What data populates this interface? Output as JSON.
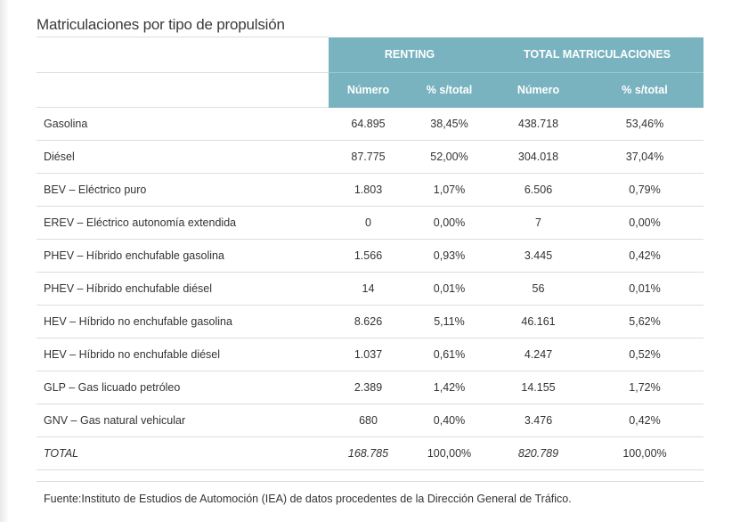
{
  "title": "Matriculaciones por tipo de propulsión",
  "header": {
    "group_renting": "RENTING",
    "group_total": "TOTAL MATRICULACIONES",
    "col_numero": "Número",
    "col_pct": "% s/total"
  },
  "rows": [
    {
      "label": "Gasolina",
      "renting_num": "64.895",
      "renting_pct": "38,45%",
      "total_num": "438.718",
      "total_pct": "53,46%"
    },
    {
      "label": "Diésel",
      "renting_num": "87.775",
      "renting_pct": "52,00%",
      "total_num": "304.018",
      "total_pct": "37,04%"
    },
    {
      "label": "BEV – Eléctrico puro",
      "renting_num": "1.803",
      "renting_pct": "1,07%",
      "total_num": "6.506",
      "total_pct": "0,79%"
    },
    {
      "label": "EREV – Eléctrico autonomía extendida",
      "renting_num": "0",
      "renting_pct": "0,00%",
      "total_num": "7",
      "total_pct": "0,00%"
    },
    {
      "label": "PHEV – Híbrido enchufable gasolina",
      "renting_num": "1.566",
      "renting_pct": "0,93%",
      "total_num": "3.445",
      "total_pct": "0,42%"
    },
    {
      "label": "PHEV – Híbrido enchufable diésel",
      "renting_num": "14",
      "renting_pct": "0,01%",
      "total_num": "56",
      "total_pct": "0,01%"
    },
    {
      "label": "HEV – Híbrido no enchufable gasolina",
      "renting_num": "8.626",
      "renting_pct": "5,11%",
      "total_num": "46.161",
      "total_pct": "5,62%"
    },
    {
      "label": "HEV – Híbrido no enchufable diésel",
      "renting_num": "1.037",
      "renting_pct": "0,61%",
      "total_num": "4.247",
      "total_pct": "0,52%"
    },
    {
      "label": "GLP – Gas licuado petróleo",
      "renting_num": "2.389",
      "renting_pct": "1,42%",
      "total_num": "14.155",
      "total_pct": "1,72%"
    },
    {
      "label": "GNV – Gas natural vehicular",
      "renting_num": "680",
      "renting_pct": "0,40%",
      "total_num": "3.476",
      "total_pct": "0,42%"
    }
  ],
  "total": {
    "label": "TOTAL",
    "renting_num": "168.785",
    "renting_pct": "100,00%",
    "total_num": "820.789",
    "total_pct": "100,00%"
  },
  "source": "Fuente:Instituto de Estudios de Automoción (IEA) de datos procedentes de la Dirección General de Tráfico.",
  "colors": {
    "header_bg": "#79b3c0",
    "header_text": "#ffffff",
    "row_border": "#dddddd"
  }
}
